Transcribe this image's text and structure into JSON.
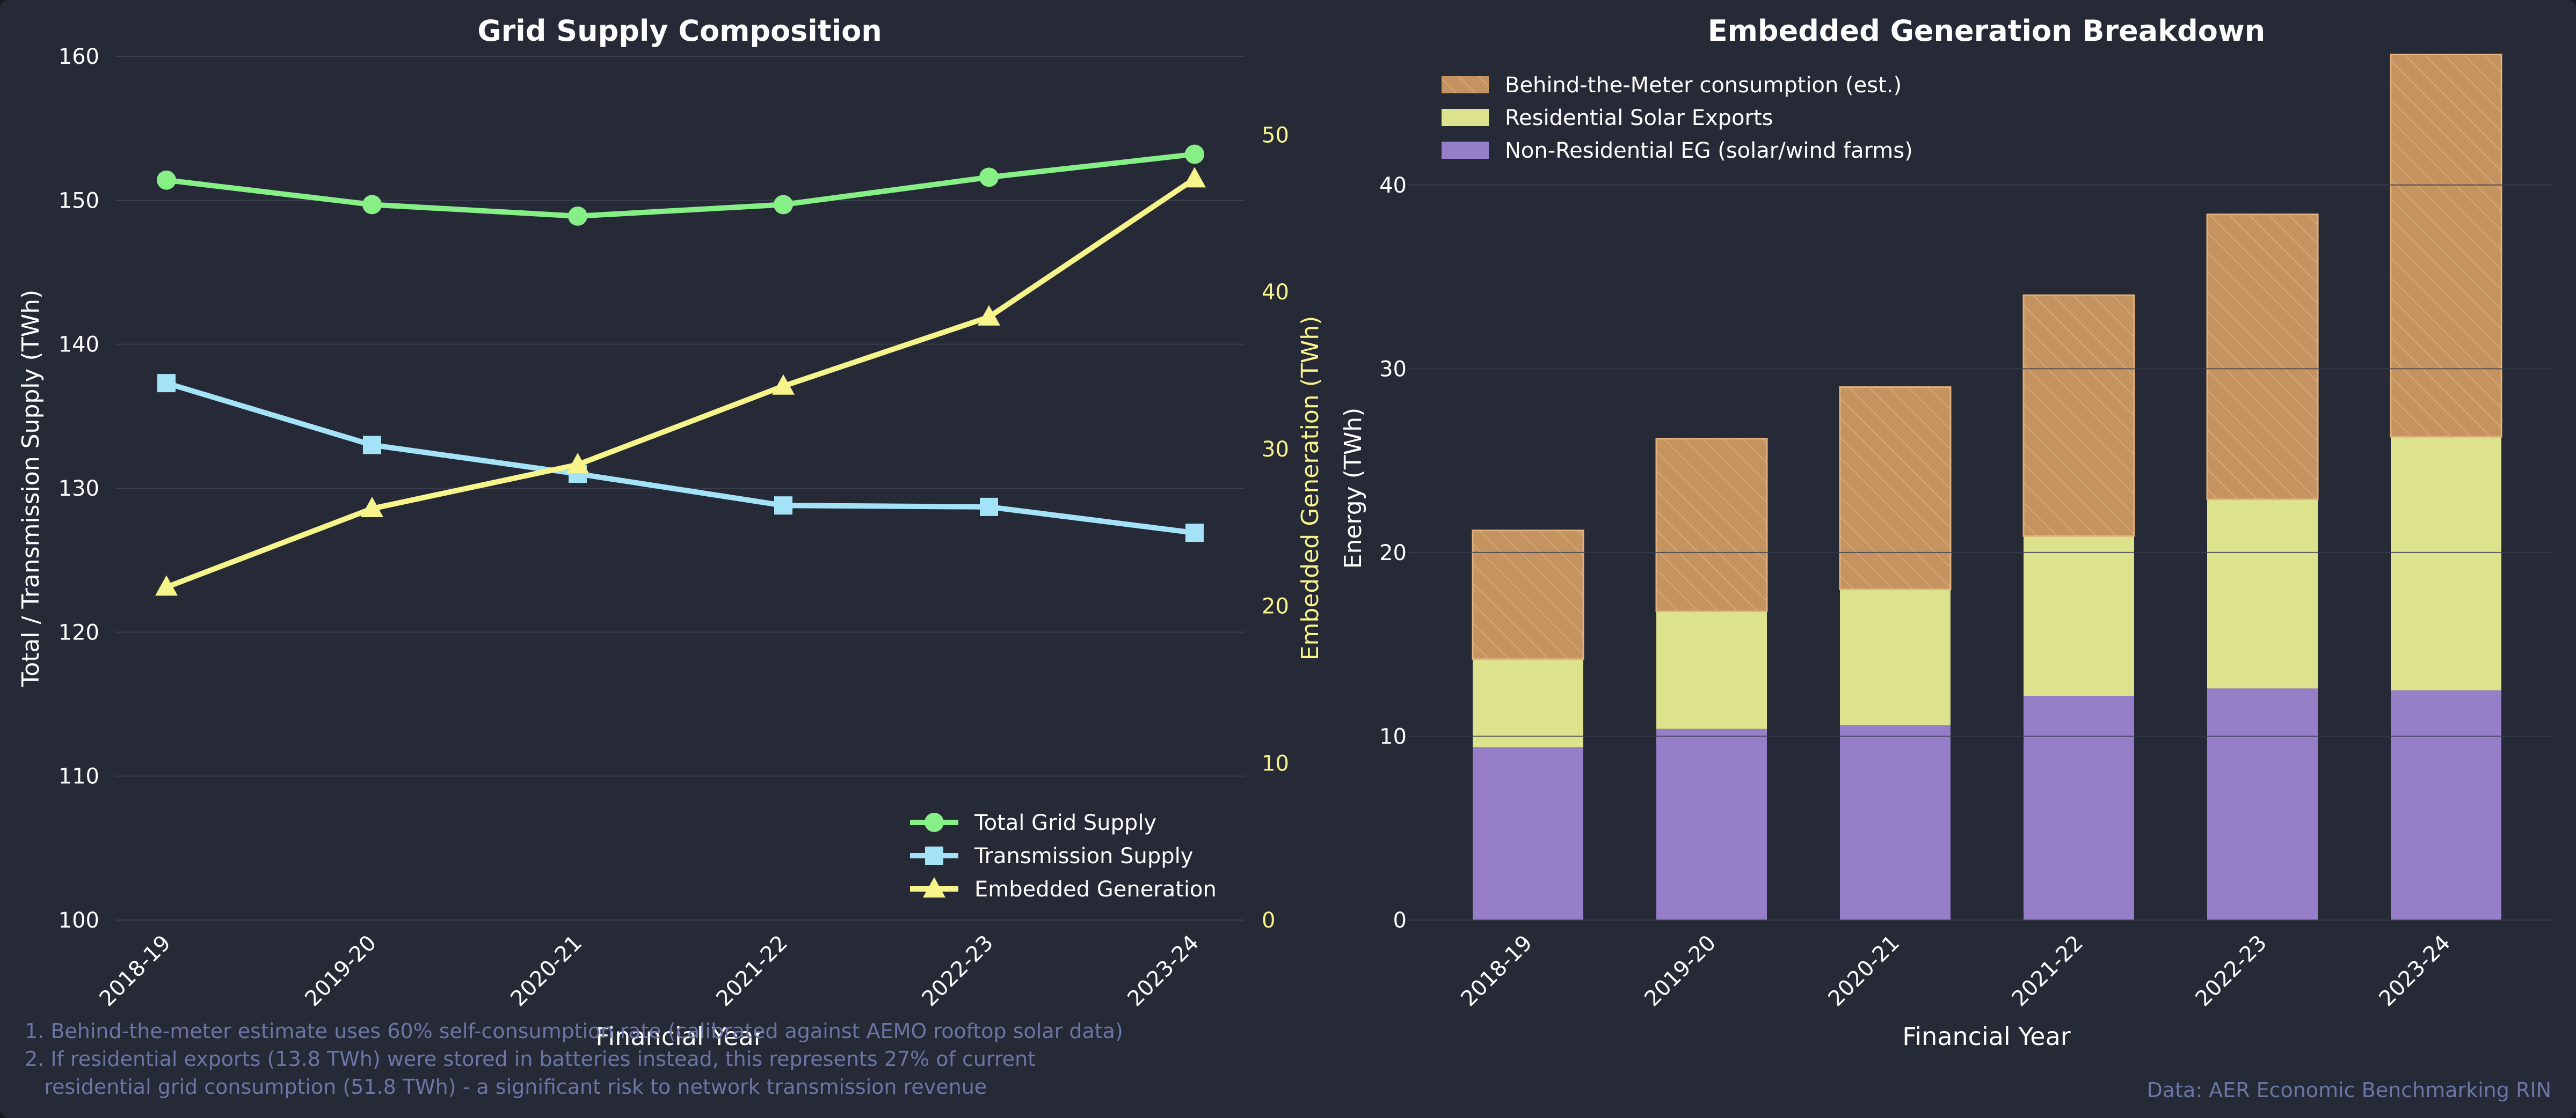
{
  "colors": {
    "background": "#262936",
    "grid": "#3a3e4e",
    "text": "#ffffff",
    "muted": "#6b76a6",
    "total": "#86ef86",
    "transmission": "#a4e2f7",
    "embedded": "#f6f48a",
    "btm": "#c4935f",
    "residential_solar": "#dde28c",
    "non_residential": "#977ec9"
  },
  "chart_data": [
    {
      "type": "line",
      "title": "Grid Supply Composition",
      "xlabel": "Financial Year",
      "ylabel": "Total / Transmission Supply (TWh)",
      "y2label": "Embedded Generation (TWh)",
      "categories": [
        "2018-19",
        "2019-20",
        "2020-21",
        "2021-22",
        "2022-23",
        "2023-24"
      ],
      "ylim": [
        100,
        160
      ],
      "yticks": [
        "100",
        "110",
        "120",
        "130",
        "140",
        "150",
        "160"
      ],
      "y2lim": [
        0,
        55
      ],
      "y2ticks": [
        "0",
        "10",
        "20",
        "30",
        "40",
        "50"
      ],
      "grid": true,
      "legend_position": "lower-right",
      "series": [
        {
          "name": "Total Grid Supply",
          "axis": "left",
          "marker": "circle",
          "color": "#86ef86",
          "values": [
            151.4,
            149.7,
            148.9,
            149.7,
            151.6,
            153.2
          ]
        },
        {
          "name": "Transmission Supply",
          "axis": "left",
          "marker": "square",
          "color": "#a4e2f7",
          "values": [
            137.3,
            133.0,
            131.0,
            128.8,
            128.7,
            126.9
          ]
        },
        {
          "name": "Embedded Generation",
          "axis": "right",
          "marker": "triangle",
          "color": "#f6f48a",
          "values": [
            21.2,
            26.2,
            29.0,
            34.0,
            38.4,
            47.2
          ]
        }
      ]
    },
    {
      "type": "bar",
      "stacked": true,
      "title": "Embedded Generation Breakdown",
      "xlabel": "Financial Year",
      "ylabel": "Energy (TWh)",
      "categories": [
        "2018-19",
        "2019-20",
        "2020-21",
        "2021-22",
        "2022-23",
        "2023-24"
      ],
      "ylim": [
        0,
        47
      ],
      "yticks": [
        "0",
        "10",
        "20",
        "30",
        "40"
      ],
      "grid": true,
      "legend_position": "upper-left",
      "series": [
        {
          "name": "Non-Residential EG (solar/wind farms)",
          "color": "#977ec9",
          "values": [
            9.4,
            10.4,
            10.6,
            12.2,
            12.6,
            12.5
          ]
        },
        {
          "name": "Residential Solar Exports",
          "color": "#dde28c",
          "values": [
            4.8,
            6.4,
            7.4,
            8.7,
            10.3,
            13.8
          ]
        },
        {
          "name": "Behind-the-Meter consumption (est.)",
          "color": "#c4935f",
          "hatched": true,
          "values": [
            7.0,
            9.4,
            11.0,
            13.1,
            15.5,
            20.8
          ]
        }
      ],
      "legend_order": [
        2,
        1,
        0
      ]
    }
  ],
  "footnotes": [
    "1. Behind-the-meter estimate uses 60% self-consumption rate (calibrated against AEMO rooftop solar data)",
    "2. If residential exports (13.8 TWh) were stored in batteries instead, this represents 27% of current",
    "   residential grid consumption (51.8 TWh) - a significant risk to network transmission revenue"
  ],
  "source": "Data: AER Economic Benchmarking RIN"
}
